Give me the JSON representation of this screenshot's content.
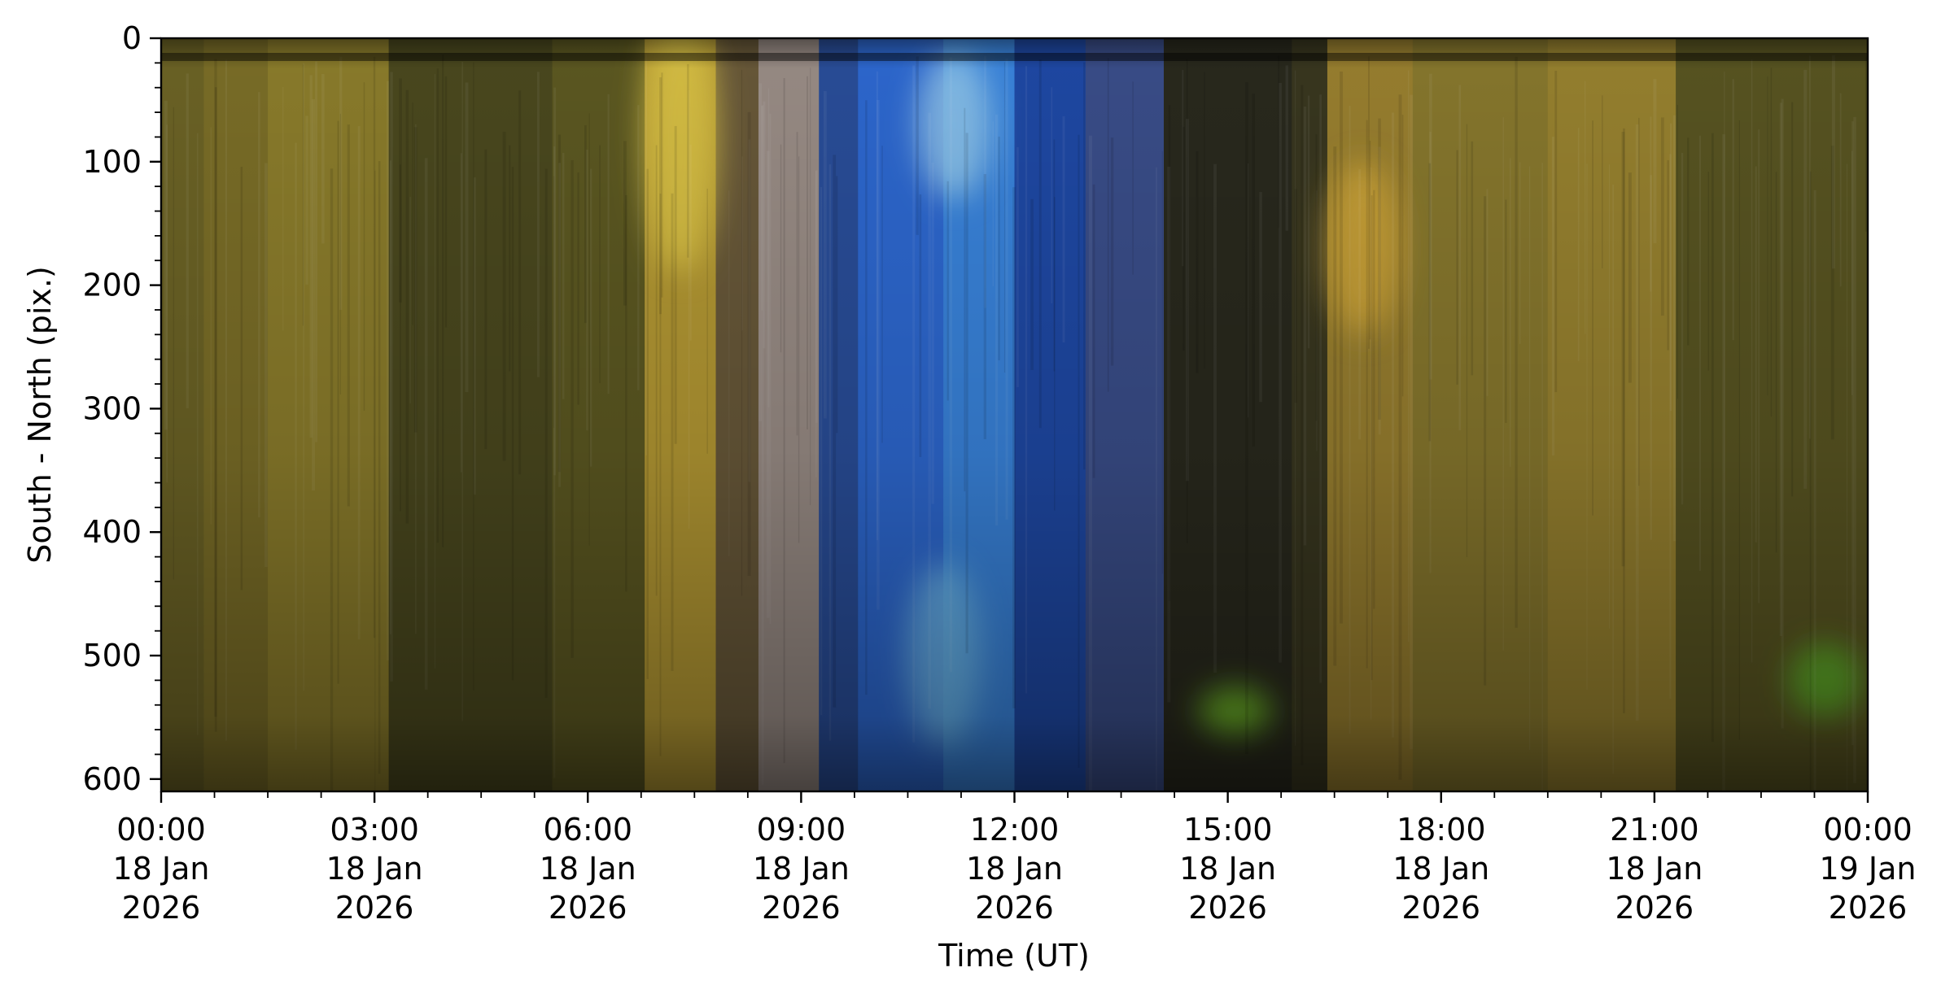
{
  "chart_data": {
    "type": "heatmap",
    "title": "",
    "xlabel": "Time (UT)",
    "ylabel": "South - North (pix.)",
    "x_range_hours": [
      0,
      24
    ],
    "ylim": [
      610,
      0
    ],
    "y_ticks": [
      0,
      100,
      200,
      300,
      400,
      500,
      600
    ],
    "x_ticks": [
      {
        "hour": 0,
        "time": "00:00",
        "day": "18 Jan",
        "year": "2026"
      },
      {
        "hour": 3,
        "time": "03:00",
        "day": "18 Jan",
        "year": "2026"
      },
      {
        "hour": 6,
        "time": "06:00",
        "day": "18 Jan",
        "year": "2026"
      },
      {
        "hour": 9,
        "time": "09:00",
        "day": "18 Jan",
        "year": "2026"
      },
      {
        "hour": 12,
        "time": "12:00",
        "day": "18 Jan",
        "year": "2026"
      },
      {
        "hour": 15,
        "time": "15:00",
        "day": "18 Jan",
        "year": "2026"
      },
      {
        "hour": 18,
        "time": "18:00",
        "day": "18 Jan",
        "year": "2026"
      },
      {
        "hour": 21,
        "time": "21:00",
        "day": "18 Jan",
        "year": "2026"
      },
      {
        "hour": 24,
        "time": "00:00",
        "day": "19 Jan",
        "year": "2026"
      }
    ],
    "grid": false,
    "color_bands": [
      {
        "from": 0.0,
        "to": 0.6,
        "color": "#6e6526"
      },
      {
        "from": 0.6,
        "to": 1.5,
        "color": "#7d7028"
      },
      {
        "from": 1.5,
        "to": 3.2,
        "color": "#8e7f2c"
      },
      {
        "from": 3.2,
        "to": 5.5,
        "color": "#4c4a1f"
      },
      {
        "from": 5.5,
        "to": 6.8,
        "color": "#5e5a22"
      },
      {
        "from": 6.8,
        "to": 7.8,
        "color": "#b79b34"
      },
      {
        "from": 7.8,
        "to": 8.4,
        "color": "#6a5a3a"
      },
      {
        "from": 8.4,
        "to": 9.25,
        "color": "#9c8f88"
      },
      {
        "from": 9.25,
        "to": 9.8,
        "color": "#2a4f9c"
      },
      {
        "from": 9.8,
        "to": 11.0,
        "color": "#2e6ad4"
      },
      {
        "from": 11.0,
        "to": 12.0,
        "color": "#3a86e0"
      },
      {
        "from": 12.0,
        "to": 13.0,
        "color": "#1f4aa8"
      },
      {
        "from": 13.0,
        "to": 14.1,
        "color": "#3b4f8c"
      },
      {
        "from": 14.1,
        "to": 15.9,
        "color": "#2a2a1e"
      },
      {
        "from": 15.9,
        "to": 16.4,
        "color": "#3a3820"
      },
      {
        "from": 16.4,
        "to": 17.6,
        "color": "#9c8230"
      },
      {
        "from": 17.6,
        "to": 19.5,
        "color": "#8a7a2e"
      },
      {
        "from": 19.5,
        "to": 21.3,
        "color": "#9a8430"
      },
      {
        "from": 21.3,
        "to": 24.0,
        "color": "#5a5622"
      }
    ],
    "glow_features": [
      {
        "hour": 7.3,
        "center": 80,
        "height": 220,
        "color": "#e6cf4a"
      },
      {
        "hour": 11.15,
        "center": 70,
        "height": 120,
        "color": "#9ed2f0"
      },
      {
        "hour": 11.0,
        "center": 500,
        "height": 150,
        "color": "#74c2f0"
      },
      {
        "hour": 15.1,
        "center": 545,
        "height": 40,
        "color": "#7fd82a"
      },
      {
        "hour": 16.9,
        "center": 170,
        "height": 140,
        "color": "#d9ae38"
      },
      {
        "hour": 23.4,
        "center": 520,
        "height": 60,
        "color": "#5fc22a"
      }
    ]
  }
}
